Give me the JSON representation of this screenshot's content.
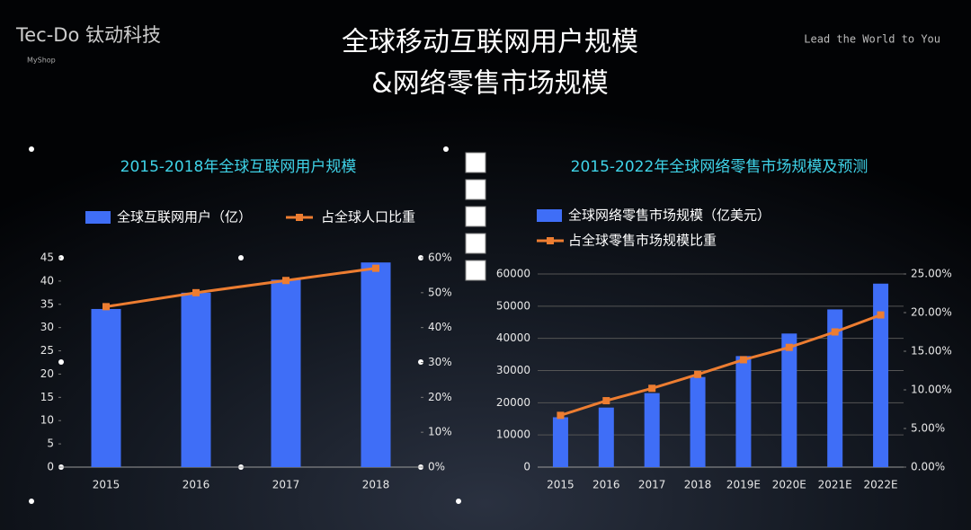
{
  "header": {
    "logo": "Tec-Do 钛动科技",
    "sublogo": "MyShop",
    "slogan": "Lead the World to You",
    "title_line1": "全球移动互联网用户规模",
    "title_line2": "&网络零售市场规模"
  },
  "chart_data": [
    {
      "type": "bar-line",
      "title": "2015-2018年全球互联网用户规模",
      "categories": [
        "2015",
        "2016",
        "2017",
        "2018"
      ],
      "series": [
        {
          "name": "全球互联网用户（亿）",
          "color": "#3f6ef7",
          "values": [
            34,
            37.5,
            40.3,
            44
          ]
        },
        {
          "name": "占全球人口比重",
          "color": "#ed7d31",
          "axis": "y2",
          "values": [
            46,
            50,
            53.5,
            57
          ]
        }
      ],
      "ylim": [
        0,
        45
      ],
      "yticks": [
        0,
        5,
        10,
        15,
        20,
        25,
        30,
        35,
        40,
        45
      ],
      "y2lim": [
        0,
        60
      ],
      "y2ticks": [
        {
          "value": 0,
          "label": "0%"
        },
        {
          "value": 10,
          "label": "10%"
        },
        {
          "value": 20,
          "label": "20%"
        },
        {
          "value": 30,
          "label": "30%"
        },
        {
          "value": 40,
          "label": "40%"
        },
        {
          "value": 50,
          "label": "50%"
        },
        {
          "value": 60,
          "label": "60%"
        }
      ],
      "grid": false,
      "legend": "top"
    },
    {
      "type": "bar-line",
      "title": "2015-2022年全球网络零售市场规模及预测",
      "categories": [
        "2015",
        "2016",
        "2017",
        "2018",
        "2019E",
        "2020E",
        "2021E",
        "2022E"
      ],
      "series": [
        {
          "name": "全球网络零售市场规模（亿美元）",
          "color": "#3f6ef7",
          "values": [
            15500,
            18500,
            23000,
            28000,
            34500,
            41500,
            49000,
            57000
          ]
        },
        {
          "name": "占全球零售市场规模比重",
          "color": "#ed7d31",
          "axis": "y2",
          "values": [
            6.7,
            8.6,
            10.2,
            12,
            13.9,
            15.5,
            17.5,
            19.7
          ]
        }
      ],
      "ylim": [
        0,
        60000
      ],
      "yticks": [
        0,
        10000,
        20000,
        30000,
        40000,
        50000,
        60000
      ],
      "y2lim": [
        0,
        25
      ],
      "y2ticks": [
        {
          "value": 0,
          "label": "0.00%"
        },
        {
          "value": 5,
          "label": "5.00%"
        },
        {
          "value": 10,
          "label": "10.00%"
        },
        {
          "value": 15,
          "label": "15.00%"
        },
        {
          "value": 20,
          "label": "20.00%"
        },
        {
          "value": 25,
          "label": "25.00%"
        }
      ],
      "grid": true,
      "legend": "top-left"
    }
  ]
}
